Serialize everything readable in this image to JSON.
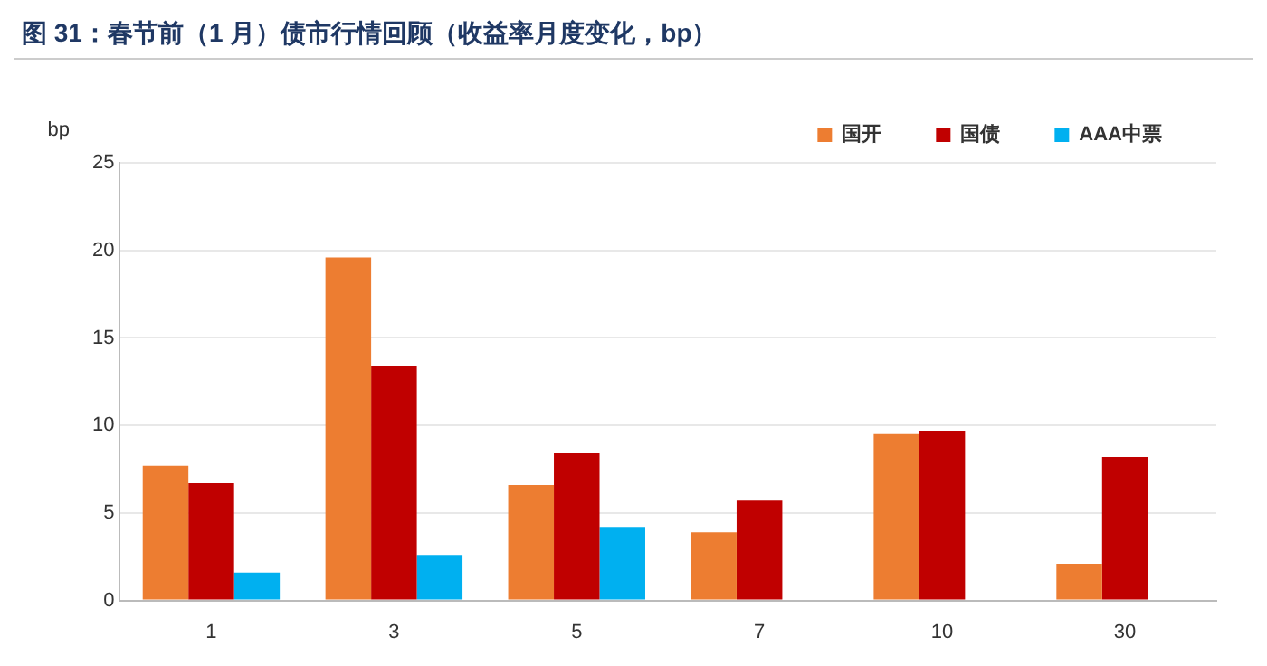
{
  "chart_data": {
    "type": "bar",
    "title": "图 31：春节前（1 月）债市行情回顾（收益率月度变化，bp）",
    "ylabel": "bp",
    "categories": [
      "1",
      "3",
      "5",
      "7",
      "10",
      "30"
    ],
    "series": [
      {
        "name": "国开",
        "color": "#ed7d31",
        "values": [
          7.7,
          19.6,
          6.6,
          3.9,
          9.5,
          2.1
        ]
      },
      {
        "name": "国债",
        "color": "#c00000",
        "values": [
          6.7,
          13.4,
          8.4,
          5.7,
          9.7,
          8.2
        ]
      },
      {
        "name": "AAA中票",
        "color": "#00b0f0",
        "values": [
          1.6,
          2.6,
          4.2,
          null,
          null,
          null
        ]
      }
    ],
    "ylim": [
      0,
      25
    ],
    "yticks": [
      0,
      5,
      10,
      15,
      20,
      25
    ],
    "grid": "y",
    "legend": "top right"
  }
}
